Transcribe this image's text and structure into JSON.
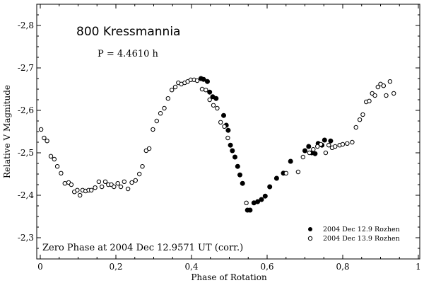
{
  "chart_data": {
    "type": "scatter",
    "title": "800 Kressmannia",
    "period_label": "P = 4.4610 h",
    "zero_phase_note": "Zero Phase at 2004 Dec 12.9571 UT (corr.)",
    "xlabel": "Phase of Rotation",
    "ylabel": "Relative V Magnitude",
    "xlim": [
      0,
      1
    ],
    "ylim": [
      -2.85,
      -2.25
    ],
    "y_inverted": true,
    "x_ticks": [
      0,
      0.2,
      0.4,
      0.6,
      0.8,
      1
    ],
    "x_tick_labels": [
      "0",
      "0,2",
      "0,4",
      "0,6",
      "0,8",
      "1"
    ],
    "y_ticks": [
      -2.8,
      -2.7,
      -2.6,
      -2.5,
      -2.4,
      -2.3
    ],
    "y_tick_labels": [
      "-2,8",
      "-2,7",
      "-2,6",
      "-2,5",
      "-2,4",
      "-2,3"
    ],
    "legend_position": "bottom-right",
    "series": [
      {
        "name": "2004 Dec 12.9 Rozhen",
        "marker": "filled-circle",
        "x": [
          0.425,
          0.432,
          0.442,
          0.448,
          0.456,
          0.465,
          0.485,
          0.492,
          0.497,
          0.503,
          0.508,
          0.515,
          0.522,
          0.528,
          0.535,
          0.548,
          0.555,
          0.565,
          0.575,
          0.585,
          0.595,
          0.607,
          0.625,
          0.643,
          0.662,
          0.7,
          0.71,
          0.718,
          0.727,
          0.735,
          0.745,
          0.752,
          0.768
        ],
        "y": [
          -2.675,
          -2.673,
          -2.668,
          -2.643,
          -2.632,
          -2.628,
          -2.588,
          -2.565,
          -2.553,
          -2.518,
          -2.505,
          -2.49,
          -2.468,
          -2.448,
          -2.428,
          -2.365,
          -2.365,
          -2.382,
          -2.385,
          -2.39,
          -2.398,
          -2.42,
          -2.44,
          -2.452,
          -2.48,
          -2.505,
          -2.515,
          -2.5,
          -2.498,
          -2.522,
          -2.518,
          -2.53,
          -2.528
        ]
      },
      {
        "name": "2004 Dec 13.9 Rozhen",
        "marker": "open-circle",
        "x": [
          0.002,
          0.01,
          0.018,
          0.028,
          0.037,
          0.045,
          0.055,
          0.065,
          0.075,
          0.082,
          0.09,
          0.098,
          0.105,
          0.112,
          0.12,
          0.128,
          0.135,
          0.145,
          0.155,
          0.163,
          0.172,
          0.18,
          0.188,
          0.195,
          0.205,
          0.213,
          0.222,
          0.232,
          0.242,
          0.252,
          0.262,
          0.27,
          0.28,
          0.288,
          0.298,
          0.308,
          0.318,
          0.328,
          0.338,
          0.348,
          0.357,
          0.365,
          0.373,
          0.382,
          0.39,
          0.398,
          0.407,
          0.415,
          0.428,
          0.438,
          0.448,
          0.458,
          0.468,
          0.477,
          0.487,
          0.496,
          0.545,
          0.65,
          0.682,
          0.695,
          0.712,
          0.722,
          0.733,
          0.742,
          0.755,
          0.763,
          0.772,
          0.78,
          0.792,
          0.8,
          0.812,
          0.825,
          0.835,
          0.845,
          0.853,
          0.862,
          0.87,
          0.878,
          0.885,
          0.893,
          0.9,
          0.908,
          0.915,
          0.925,
          0.935
        ],
        "y": [
          -2.555,
          -2.535,
          -2.528,
          -2.492,
          -2.485,
          -2.468,
          -2.452,
          -2.428,
          -2.43,
          -2.425,
          -2.408,
          -2.412,
          -2.4,
          -2.412,
          -2.41,
          -2.412,
          -2.412,
          -2.418,
          -2.432,
          -2.42,
          -2.432,
          -2.425,
          -2.425,
          -2.42,
          -2.428,
          -2.42,
          -2.432,
          -2.415,
          -2.43,
          -2.435,
          -2.45,
          -2.468,
          -2.505,
          -2.51,
          -2.555,
          -2.575,
          -2.593,
          -2.605,
          -2.628,
          -2.648,
          -2.655,
          -2.665,
          -2.662,
          -2.665,
          -2.668,
          -2.672,
          -2.672,
          -2.67,
          -2.65,
          -2.648,
          -2.625,
          -2.612,
          -2.605,
          -2.572,
          -2.562,
          -2.535,
          -2.382,
          -2.452,
          -2.455,
          -2.49,
          -2.5,
          -2.508,
          -2.515,
          -2.52,
          -2.5,
          -2.518,
          -2.512,
          -2.515,
          -2.518,
          -2.52,
          -2.522,
          -2.525,
          -2.56,
          -2.578,
          -2.59,
          -2.62,
          -2.622,
          -2.64,
          -2.635,
          -2.655,
          -2.662,
          -2.658,
          -2.635,
          -2.668,
          -2.64
        ]
      }
    ]
  }
}
